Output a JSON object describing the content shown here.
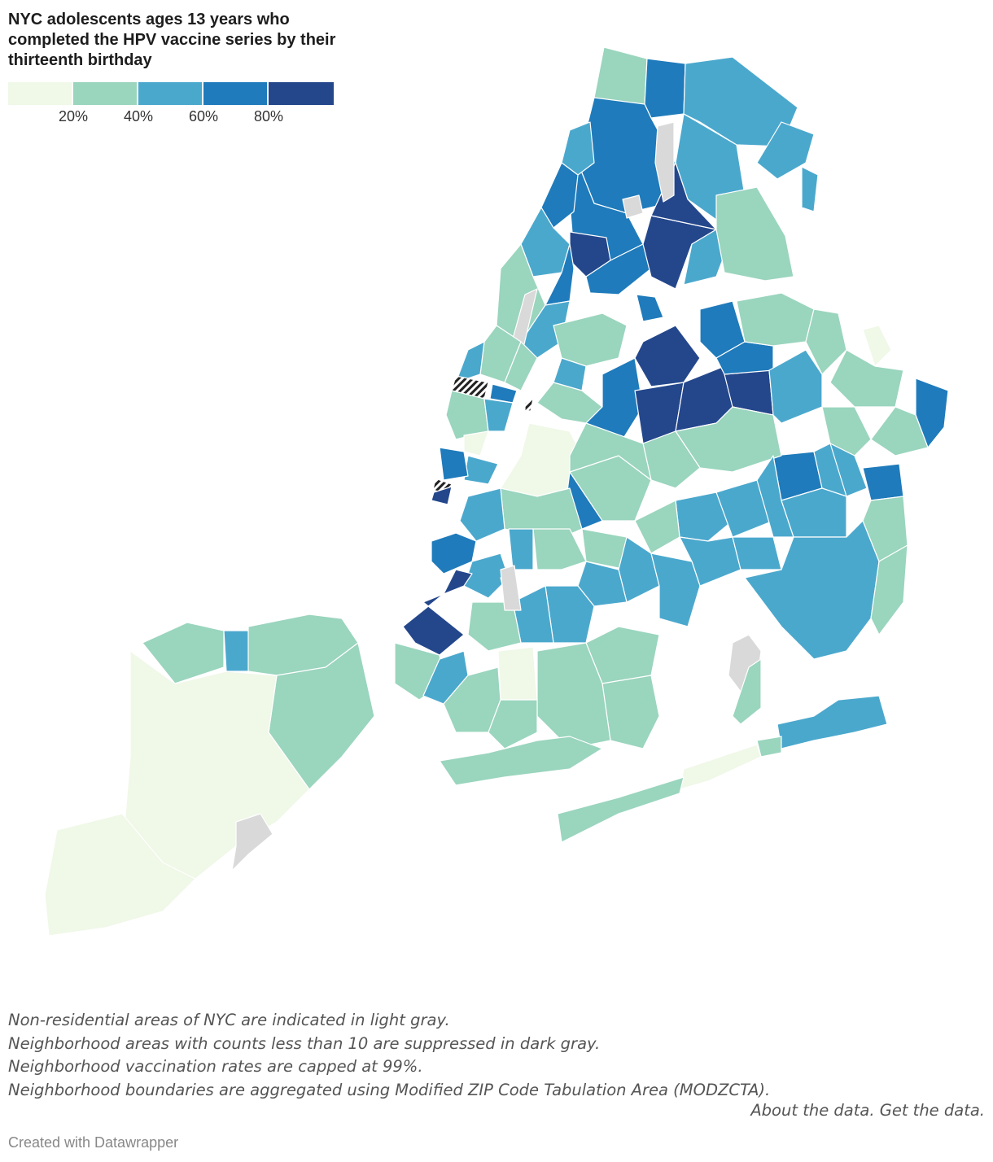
{
  "title": "NYC adolescents ages 13 years who completed the HPV vaccine series by their thirteenth birthday",
  "legend": {
    "colors": [
      "#f0f8e8",
      "#9ad5be",
      "#4ba8cd",
      "#1f7bbb",
      "#24478c"
    ],
    "ticks": [
      "20%",
      "40%",
      "60%",
      "80%"
    ]
  },
  "map_colors": {
    "bin1": "#f0f8e8",
    "bin2": "#9ad5be",
    "bin3": "#4ba8cd",
    "bin4": "#1f7bbb",
    "bin5": "#24478c",
    "non_residential": "#d9d9d9",
    "suppressed": "#333333"
  },
  "notes": [
    "Non-residential areas of NYC are indicated in light gray.",
    "Neighborhood areas with counts less than 10 are suppressed in dark gray.",
    "Neighborhood vaccination rates are capped at 99%.",
    "Neighborhood boundaries are aggregated using Modified ZIP Code Tabulation Area (MODZCTA)."
  ],
  "links": {
    "about": "About the data.",
    "get": "Get the data."
  },
  "credit": "Created with Datawrapper"
}
